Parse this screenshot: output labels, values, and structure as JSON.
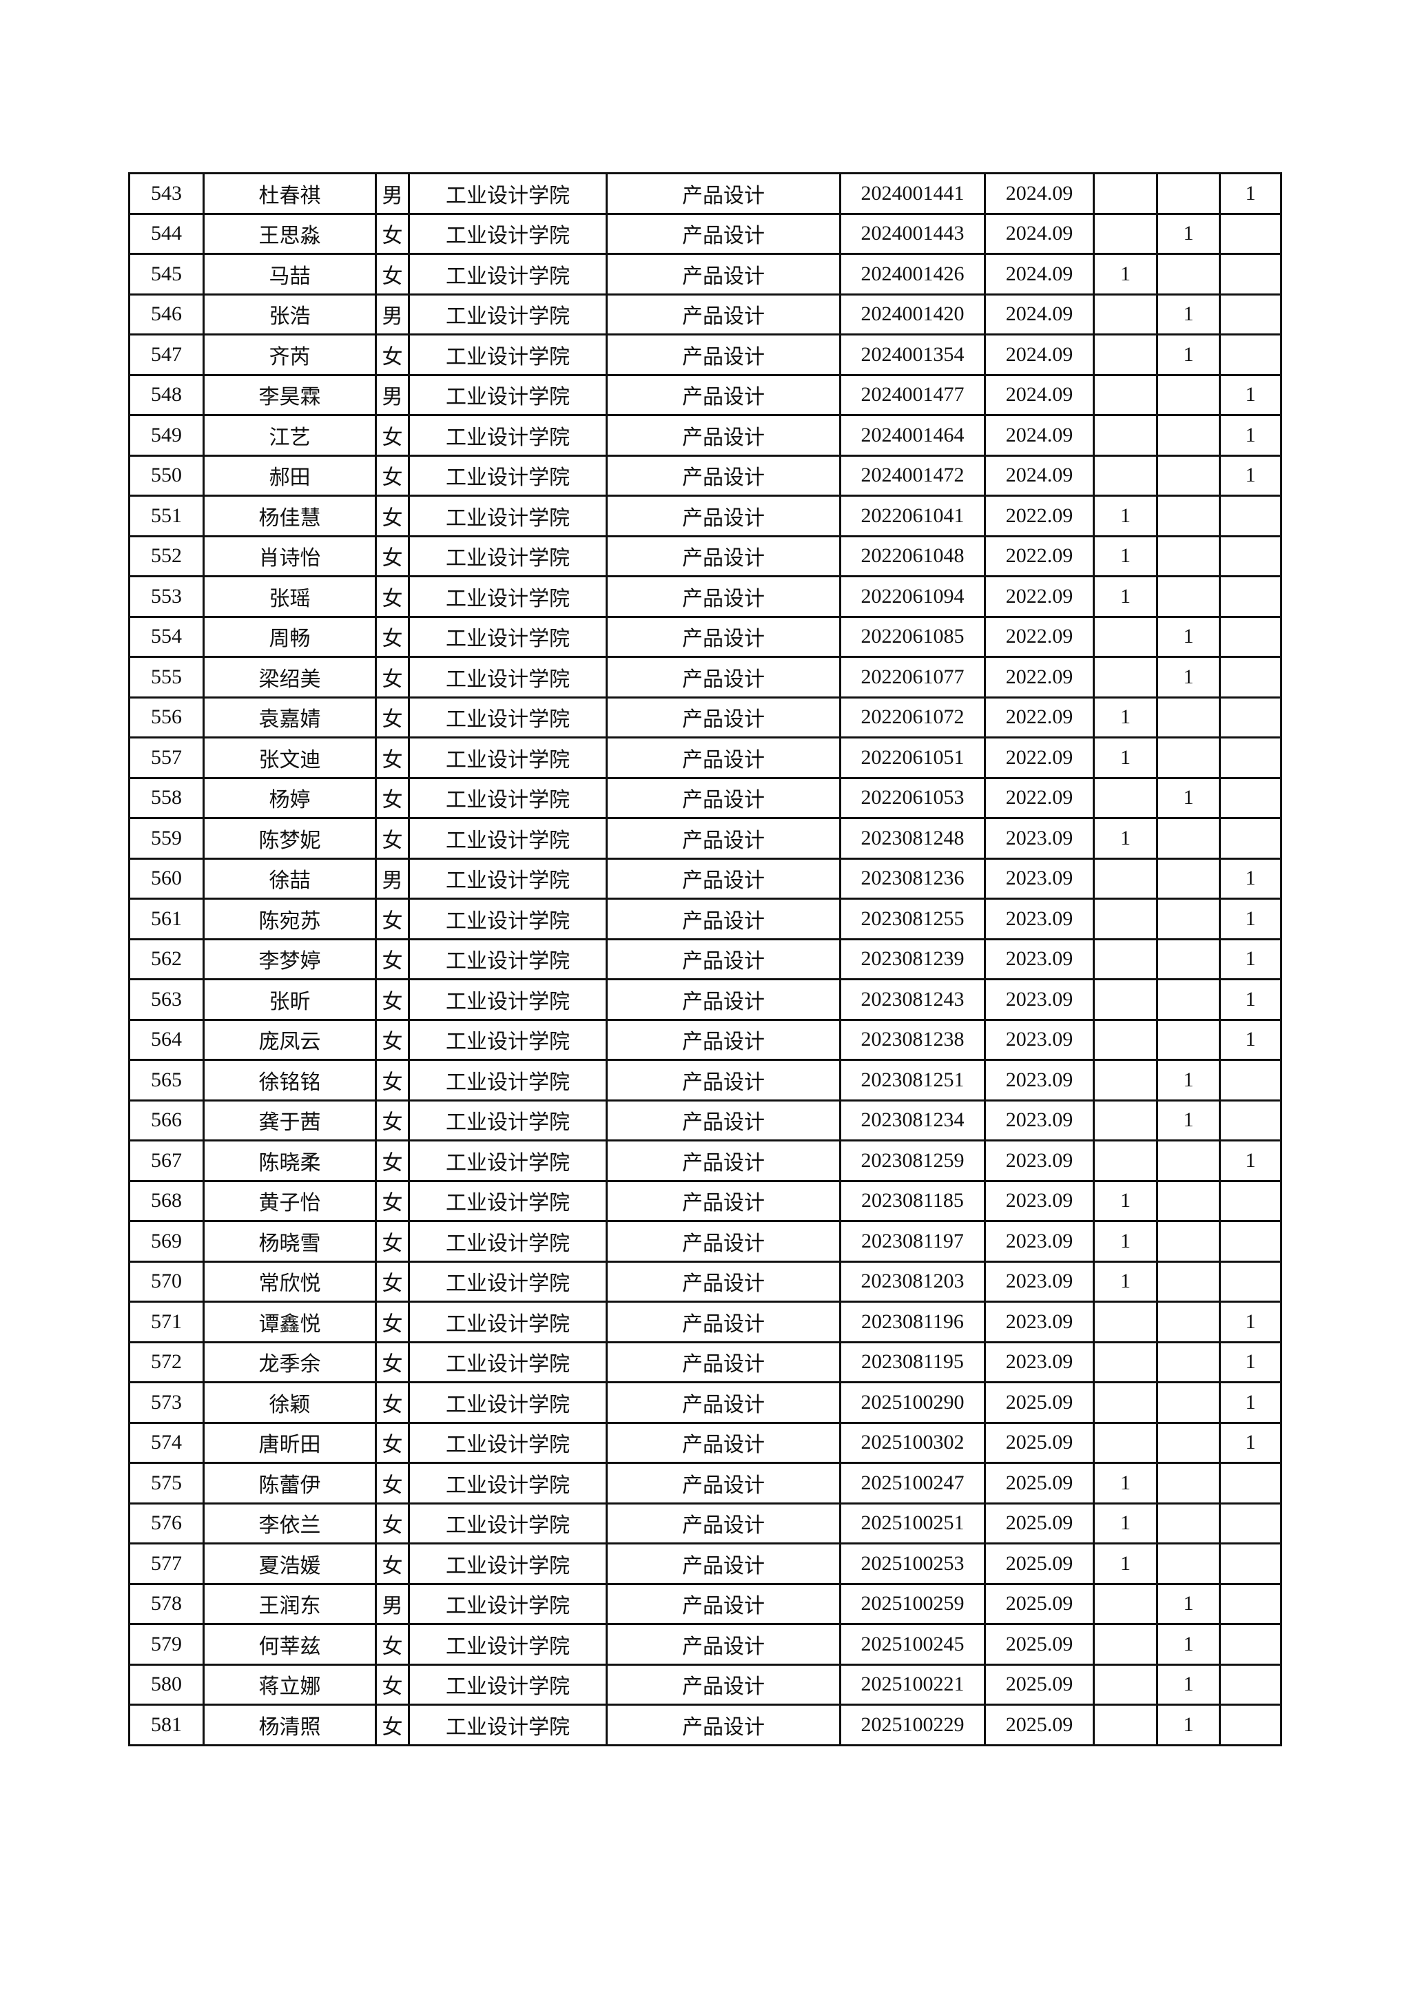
{
  "college": "工业设计学院",
  "major": "产品设计",
  "rows": [
    {
      "no": "543",
      "name": "杜春祺",
      "gender": "男",
      "id": "2024001441",
      "enroll": "2024.09",
      "marks": [
        "",
        "",
        "1"
      ]
    },
    {
      "no": "544",
      "name": "王思淼",
      "gender": "女",
      "id": "2024001443",
      "enroll": "2024.09",
      "marks": [
        "",
        "1",
        ""
      ]
    },
    {
      "no": "545",
      "name": "马喆",
      "gender": "女",
      "id": "2024001426",
      "enroll": "2024.09",
      "marks": [
        "1",
        "",
        ""
      ]
    },
    {
      "no": "546",
      "name": "张浩",
      "gender": "男",
      "id": "2024001420",
      "enroll": "2024.09",
      "marks": [
        "",
        "1",
        ""
      ]
    },
    {
      "no": "547",
      "name": "齐芮",
      "gender": "女",
      "id": "2024001354",
      "enroll": "2024.09",
      "marks": [
        "",
        "1",
        ""
      ]
    },
    {
      "no": "548",
      "name": "李昊霖",
      "gender": "男",
      "id": "2024001477",
      "enroll": "2024.09",
      "marks": [
        "",
        "",
        "1"
      ]
    },
    {
      "no": "549",
      "name": "江艺",
      "gender": "女",
      "id": "2024001464",
      "enroll": "2024.09",
      "marks": [
        "",
        "",
        "1"
      ]
    },
    {
      "no": "550",
      "name": "郝田",
      "gender": "女",
      "id": "2024001472",
      "enroll": "2024.09",
      "marks": [
        "",
        "",
        "1"
      ]
    },
    {
      "no": "551",
      "name": "杨佳慧",
      "gender": "女",
      "id": "2022061041",
      "enroll": "2022.09",
      "marks": [
        "1",
        "",
        ""
      ]
    },
    {
      "no": "552",
      "name": "肖诗怡",
      "gender": "女",
      "id": "2022061048",
      "enroll": "2022.09",
      "marks": [
        "1",
        "",
        ""
      ]
    },
    {
      "no": "553",
      "name": "张瑶",
      "gender": "女",
      "id": "2022061094",
      "enroll": "2022.09",
      "marks": [
        "1",
        "",
        ""
      ]
    },
    {
      "no": "554",
      "name": "周畅",
      "gender": "女",
      "id": "2022061085",
      "enroll": "2022.09",
      "marks": [
        "",
        "1",
        ""
      ]
    },
    {
      "no": "555",
      "name": "梁绍美",
      "gender": "女",
      "id": "2022061077",
      "enroll": "2022.09",
      "marks": [
        "",
        "1",
        ""
      ]
    },
    {
      "no": "556",
      "name": "袁嘉婧",
      "gender": "女",
      "id": "2022061072",
      "enroll": "2022.09",
      "marks": [
        "1",
        "",
        ""
      ]
    },
    {
      "no": "557",
      "name": "张文迪",
      "gender": "女",
      "id": "2022061051",
      "enroll": "2022.09",
      "marks": [
        "1",
        "",
        ""
      ]
    },
    {
      "no": "558",
      "name": "杨婷",
      "gender": "女",
      "id": "2022061053",
      "enroll": "2022.09",
      "marks": [
        "",
        "1",
        ""
      ]
    },
    {
      "no": "559",
      "name": "陈梦妮",
      "gender": "女",
      "id": "2023081248",
      "enroll": "2023.09",
      "marks": [
        "1",
        "",
        ""
      ]
    },
    {
      "no": "560",
      "name": "徐喆",
      "gender": "男",
      "id": "2023081236",
      "enroll": "2023.09",
      "marks": [
        "",
        "",
        "1"
      ]
    },
    {
      "no": "561",
      "name": "陈宛苏",
      "gender": "女",
      "id": "2023081255",
      "enroll": "2023.09",
      "marks": [
        "",
        "",
        "1"
      ]
    },
    {
      "no": "562",
      "name": "李梦婷",
      "gender": "女",
      "id": "2023081239",
      "enroll": "2023.09",
      "marks": [
        "",
        "",
        "1"
      ]
    },
    {
      "no": "563",
      "name": "张昕",
      "gender": "女",
      "id": "2023081243",
      "enroll": "2023.09",
      "marks": [
        "",
        "",
        "1"
      ]
    },
    {
      "no": "564",
      "name": "庞凤云",
      "gender": "女",
      "id": "2023081238",
      "enroll": "2023.09",
      "marks": [
        "",
        "",
        "1"
      ]
    },
    {
      "no": "565",
      "name": "徐铭铭",
      "gender": "女",
      "id": "2023081251",
      "enroll": "2023.09",
      "marks": [
        "",
        "1",
        ""
      ]
    },
    {
      "no": "566",
      "name": "龚于茜",
      "gender": "女",
      "id": "2023081234",
      "enroll": "2023.09",
      "marks": [
        "",
        "1",
        ""
      ]
    },
    {
      "no": "567",
      "name": "陈晓柔",
      "gender": "女",
      "id": "2023081259",
      "enroll": "2023.09",
      "marks": [
        "",
        "",
        "1"
      ]
    },
    {
      "no": "568",
      "name": "黄子怡",
      "gender": "女",
      "id": "2023081185",
      "enroll": "2023.09",
      "marks": [
        "1",
        "",
        ""
      ]
    },
    {
      "no": "569",
      "name": "杨晓雪",
      "gender": "女",
      "id": "2023081197",
      "enroll": "2023.09",
      "marks": [
        "1",
        "",
        ""
      ]
    },
    {
      "no": "570",
      "name": "常欣悦",
      "gender": "女",
      "id": "2023081203",
      "enroll": "2023.09",
      "marks": [
        "1",
        "",
        ""
      ]
    },
    {
      "no": "571",
      "name": "谭鑫悦",
      "gender": "女",
      "id": "2023081196",
      "enroll": "2023.09",
      "marks": [
        "",
        "",
        "1"
      ]
    },
    {
      "no": "572",
      "name": "龙季余",
      "gender": "女",
      "id": "2023081195",
      "enroll": "2023.09",
      "marks": [
        "",
        "",
        "1"
      ]
    },
    {
      "no": "573",
      "name": "徐颖",
      "gender": "女",
      "id": "2025100290",
      "enroll": "2025.09",
      "marks": [
        "",
        "",
        "1"
      ]
    },
    {
      "no": "574",
      "name": "唐昕田",
      "gender": "女",
      "id": "2025100302",
      "enroll": "2025.09",
      "marks": [
        "",
        "",
        "1"
      ]
    },
    {
      "no": "575",
      "name": "陈蕾伊",
      "gender": "女",
      "id": "2025100247",
      "enroll": "2025.09",
      "marks": [
        "1",
        "",
        ""
      ]
    },
    {
      "no": "576",
      "name": "李依兰",
      "gender": "女",
      "id": "2025100251",
      "enroll": "2025.09",
      "marks": [
        "1",
        "",
        ""
      ]
    },
    {
      "no": "577",
      "name": "夏浩媛",
      "gender": "女",
      "id": "2025100253",
      "enroll": "2025.09",
      "marks": [
        "1",
        "",
        ""
      ]
    },
    {
      "no": "578",
      "name": "王润东",
      "gender": "男",
      "id": "2025100259",
      "enroll": "2025.09",
      "marks": [
        "",
        "1",
        ""
      ]
    },
    {
      "no": "579",
      "name": "何莘兹",
      "gender": "女",
      "id": "2025100245",
      "enroll": "2025.09",
      "marks": [
        "",
        "1",
        ""
      ]
    },
    {
      "no": "580",
      "name": "蒋立娜",
      "gender": "女",
      "id": "2025100221",
      "enroll": "2025.09",
      "marks": [
        "",
        "1",
        ""
      ]
    },
    {
      "no": "581",
      "name": "杨清照",
      "gender": "女",
      "id": "2025100229",
      "enroll": "2025.09",
      "marks": [
        "",
        "1",
        ""
      ]
    }
  ]
}
